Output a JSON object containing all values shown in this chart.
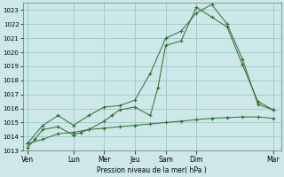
{
  "background_color": "#cce8e8",
  "grid_color": "#99cccc",
  "line_color": "#2d6a2d",
  "xlabel": "Pression niveau de la mer( hPa )",
  "ylim": [
    1013,
    1023.5
  ],
  "yticks": [
    1013,
    1014,
    1015,
    1016,
    1017,
    1018,
    1019,
    1020,
    1021,
    1022,
    1023
  ],
  "day_labels": [
    "Ven",
    "Lun",
    "Mer",
    "Jeu",
    "Sam",
    "Dim",
    "Mar"
  ],
  "day_x": [
    0,
    3,
    5,
    7,
    9,
    11,
    16
  ],
  "line1_x": [
    0,
    0.5,
    1,
    2,
    3,
    3.5,
    4,
    5,
    5.5,
    6,
    7,
    8,
    8.5,
    9,
    10,
    11,
    12,
    13,
    14,
    15,
    16
  ],
  "line1_y": [
    1013.2,
    1013.8,
    1014.5,
    1014.7,
    1014.1,
    1014.3,
    1014.5,
    1015.1,
    1015.5,
    1015.9,
    1016.1,
    1015.5,
    1017.5,
    1020.5,
    1020.8,
    1023.2,
    1022.5,
    1021.8,
    1019.1,
    1016.5,
    1015.9
  ],
  "line2_x": [
    0,
    1,
    2,
    3,
    4,
    5,
    6,
    7,
    8,
    9,
    10,
    11,
    12,
    13,
    14,
    15,
    16
  ],
  "line2_y": [
    1013.5,
    1014.8,
    1015.5,
    1014.8,
    1015.5,
    1016.1,
    1016.2,
    1016.6,
    1018.5,
    1021.0,
    1021.5,
    1022.8,
    1023.4,
    1022.0,
    1019.5,
    1016.3,
    1015.9
  ],
  "line3_x": [
    0,
    1,
    2,
    3,
    4,
    5,
    6,
    7,
    8,
    9,
    10,
    11,
    12,
    13,
    14,
    15,
    16
  ],
  "line3_y": [
    1013.5,
    1013.8,
    1014.2,
    1014.3,
    1014.5,
    1014.6,
    1014.7,
    1014.8,
    1014.9,
    1015.0,
    1015.1,
    1015.2,
    1015.3,
    1015.35,
    1015.4,
    1015.4,
    1015.3
  ],
  "figsize": [
    3.2,
    2.0
  ],
  "dpi": 100
}
